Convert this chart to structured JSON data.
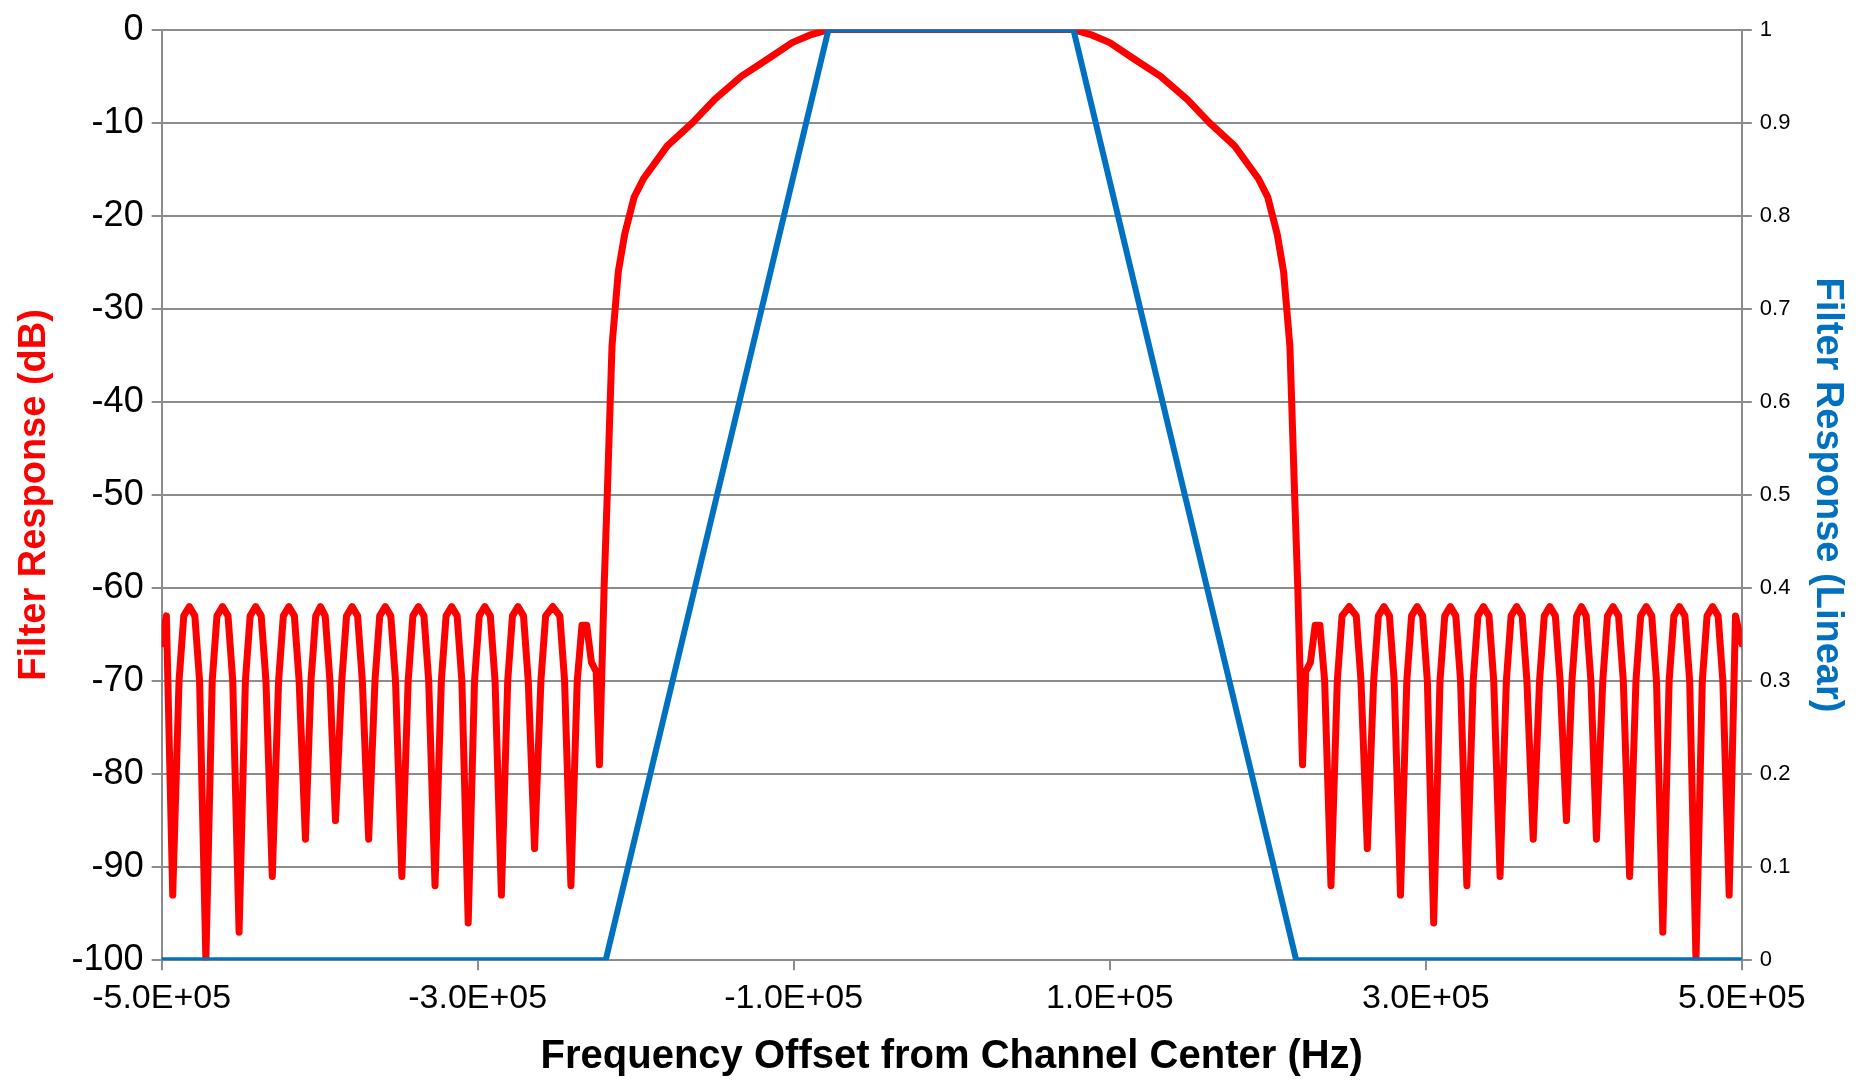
{
  "chart_data": {
    "type": "line",
    "xlabel": "Frequency Offset from Channel Center (Hz)",
    "ylabel": "Filter Response (dB)",
    "y2label": "Filter Response (Linear)",
    "xlim": [
      -500000,
      500000
    ],
    "xticks": [
      {
        "value": -500000,
        "label": "-5.0E+05"
      },
      {
        "value": -300000,
        "label": "-3.0E+05"
      },
      {
        "value": -100000,
        "label": "-1.0E+05"
      },
      {
        "value": 100000,
        "label": "1.0E+05"
      },
      {
        "value": 300000,
        "label": "3.0E+05"
      },
      {
        "value": 500000,
        "label": "5.0E+05"
      }
    ],
    "ylim": [
      -100,
      0
    ],
    "yticks": [
      0,
      -10,
      -20,
      -30,
      -40,
      -50,
      -60,
      -70,
      -80,
      -90,
      -100
    ],
    "y2lim": [
      0,
      1
    ],
    "y2ticks": [
      0,
      0.1,
      0.2,
      0.3,
      0.4,
      0.5,
      0.6,
      0.7,
      0.8,
      0.9,
      1
    ],
    "grid": "y",
    "legend": false,
    "marker": "none",
    "line_style": "solid",
    "series": [
      {
        "type": "line",
        "color": "#ff0000",
        "x": [
          -500000,
          -497000,
          -493000,
          -489000,
          -486000,
          -482500,
          -479000,
          -476000,
          -472000,
          -468000,
          -465000,
          -461500,
          -458000,
          -455000,
          -451000,
          -447000,
          -444000,
          -440500,
          -437000,
          -434000,
          -430000,
          -426000,
          -423000,
          -419500,
          -416000,
          -413000,
          -409000,
          -405500,
          -402500,
          -399500,
          -396500,
          -393500,
          -390000,
          -386000,
          -383000,
          -379500,
          -376000,
          -373000,
          -369000,
          -365000,
          -362000,
          -358500,
          -355000,
          -352000,
          -348000,
          -344000,
          -341000,
          -337500,
          -334000,
          -331000,
          -327000,
          -323000,
          -320000,
          -316500,
          -313000,
          -310000,
          -306000,
          -302000,
          -299000,
          -295500,
          -292000,
          -289000,
          -285000,
          -281000,
          -278000,
          -274500,
          -271000,
          -268000,
          -264000,
          -260000,
          -257000,
          -252500,
          -248000,
          -245000,
          -241000,
          -237000,
          -234000,
          -231000,
          -228000,
          -225000,
          -223000,
          -220000,
          -218000,
          -215000,
          -211000,
          -207000,
          -201000,
          -195000,
          -180000,
          -164000,
          -150000,
          -133000,
          -115000,
          -101000,
          -90000,
          -78000,
          0,
          77000,
          89000,
          100000,
          114000,
          132000,
          149000,
          163000,
          179000,
          194000,
          200000,
          206000,
          210000,
          214000,
          217000,
          219000,
          222000,
          224000,
          227000,
          230000,
          233000,
          236000,
          240000,
          244000,
          247000,
          251500,
          256000,
          259000,
          263000,
          267000,
          270000,
          273500,
          277000,
          280000,
          284000,
          288000,
          291000,
          294500,
          298000,
          301000,
          305000,
          309000,
          312000,
          315500,
          319000,
          322000,
          326000,
          330000,
          333000,
          336500,
          340000,
          343000,
          347000,
          351000,
          354000,
          357500,
          361000,
          364000,
          368000,
          372000,
          375000,
          378500,
          382000,
          385000,
          389000,
          392500,
          395500,
          398500,
          401500,
          404500,
          408000,
          412000,
          415000,
          418500,
          422000,
          425000,
          429000,
          433000,
          436000,
          439500,
          443000,
          446000,
          450000,
          454000,
          457000,
          460500,
          464000,
          467000,
          471000,
          475000,
          478000,
          481500,
          485000,
          488000,
          492000,
          496000,
          500000
        ],
        "values": [
          -66,
          -63,
          -93,
          -70,
          -63,
          -62,
          -63,
          -70,
          -100,
          -70,
          -63,
          -62,
          -63,
          -70,
          -97,
          -70,
          -63,
          -62,
          -63,
          -70,
          -91,
          -70,
          -63,
          -62,
          -63,
          -70,
          -87,
          -70,
          -63,
          -62,
          -63,
          -70,
          -85,
          -70,
          -63,
          -62,
          -63,
          -70,
          -87,
          -70,
          -63,
          -62,
          -63,
          -70,
          -91,
          -70,
          -63,
          -62,
          -63,
          -70,
          -92,
          -70,
          -63,
          -62,
          -63,
          -70,
          -96,
          -70,
          -63,
          -62,
          -63,
          -70,
          -93,
          -70,
          -63,
          -62,
          -63,
          -70,
          -88,
          -70,
          -63,
          -62,
          -63,
          -70,
          -92,
          -70,
          -64,
          -64,
          -68,
          -69,
          -79,
          -60,
          -50,
          -34,
          -26,
          -22,
          -18,
          -16,
          -12.5,
          -10,
          -7.5,
          -5,
          -3,
          -1.4,
          -0.6,
          0,
          0,
          0,
          -0.6,
          -1.4,
          -3,
          -5,
          -7.5,
          -10,
          -12.5,
          -16,
          -18,
          -22,
          -26,
          -34,
          -50,
          -60,
          -79,
          -69,
          -68,
          -64,
          -64,
          -70,
          -92,
          -70,
          -63,
          -62,
          -63,
          -70,
          -88,
          -70,
          -63,
          -62,
          -63,
          -70,
          -93,
          -70,
          -63,
          -62,
          -63,
          -70,
          -96,
          -70,
          -63,
          -62,
          -63,
          -70,
          -92,
          -70,
          -63,
          -62,
          -63,
          -70,
          -91,
          -70,
          -63,
          -62,
          -63,
          -70,
          -87,
          -70,
          -63,
          -62,
          -63,
          -70,
          -85,
          -70,
          -63,
          -62,
          -63,
          -70,
          -87,
          -70,
          -63,
          -62,
          -63,
          -70,
          -91,
          -70,
          -63,
          -62,
          -63,
          -70,
          -97,
          -70,
          -63,
          -62,
          -63,
          -70,
          -100,
          -70,
          -63,
          -62,
          -63,
          -70,
          -93,
          -63,
          -66
        ]
      },
      {
        "type": "line",
        "axis": "y2",
        "color": "#0070c0",
        "x": [
          -500000,
          -219000,
          -78000,
          77000,
          218000,
          500000
        ],
        "values": [
          0,
          0,
          1,
          1,
          0,
          0
        ]
      }
    ]
  }
}
